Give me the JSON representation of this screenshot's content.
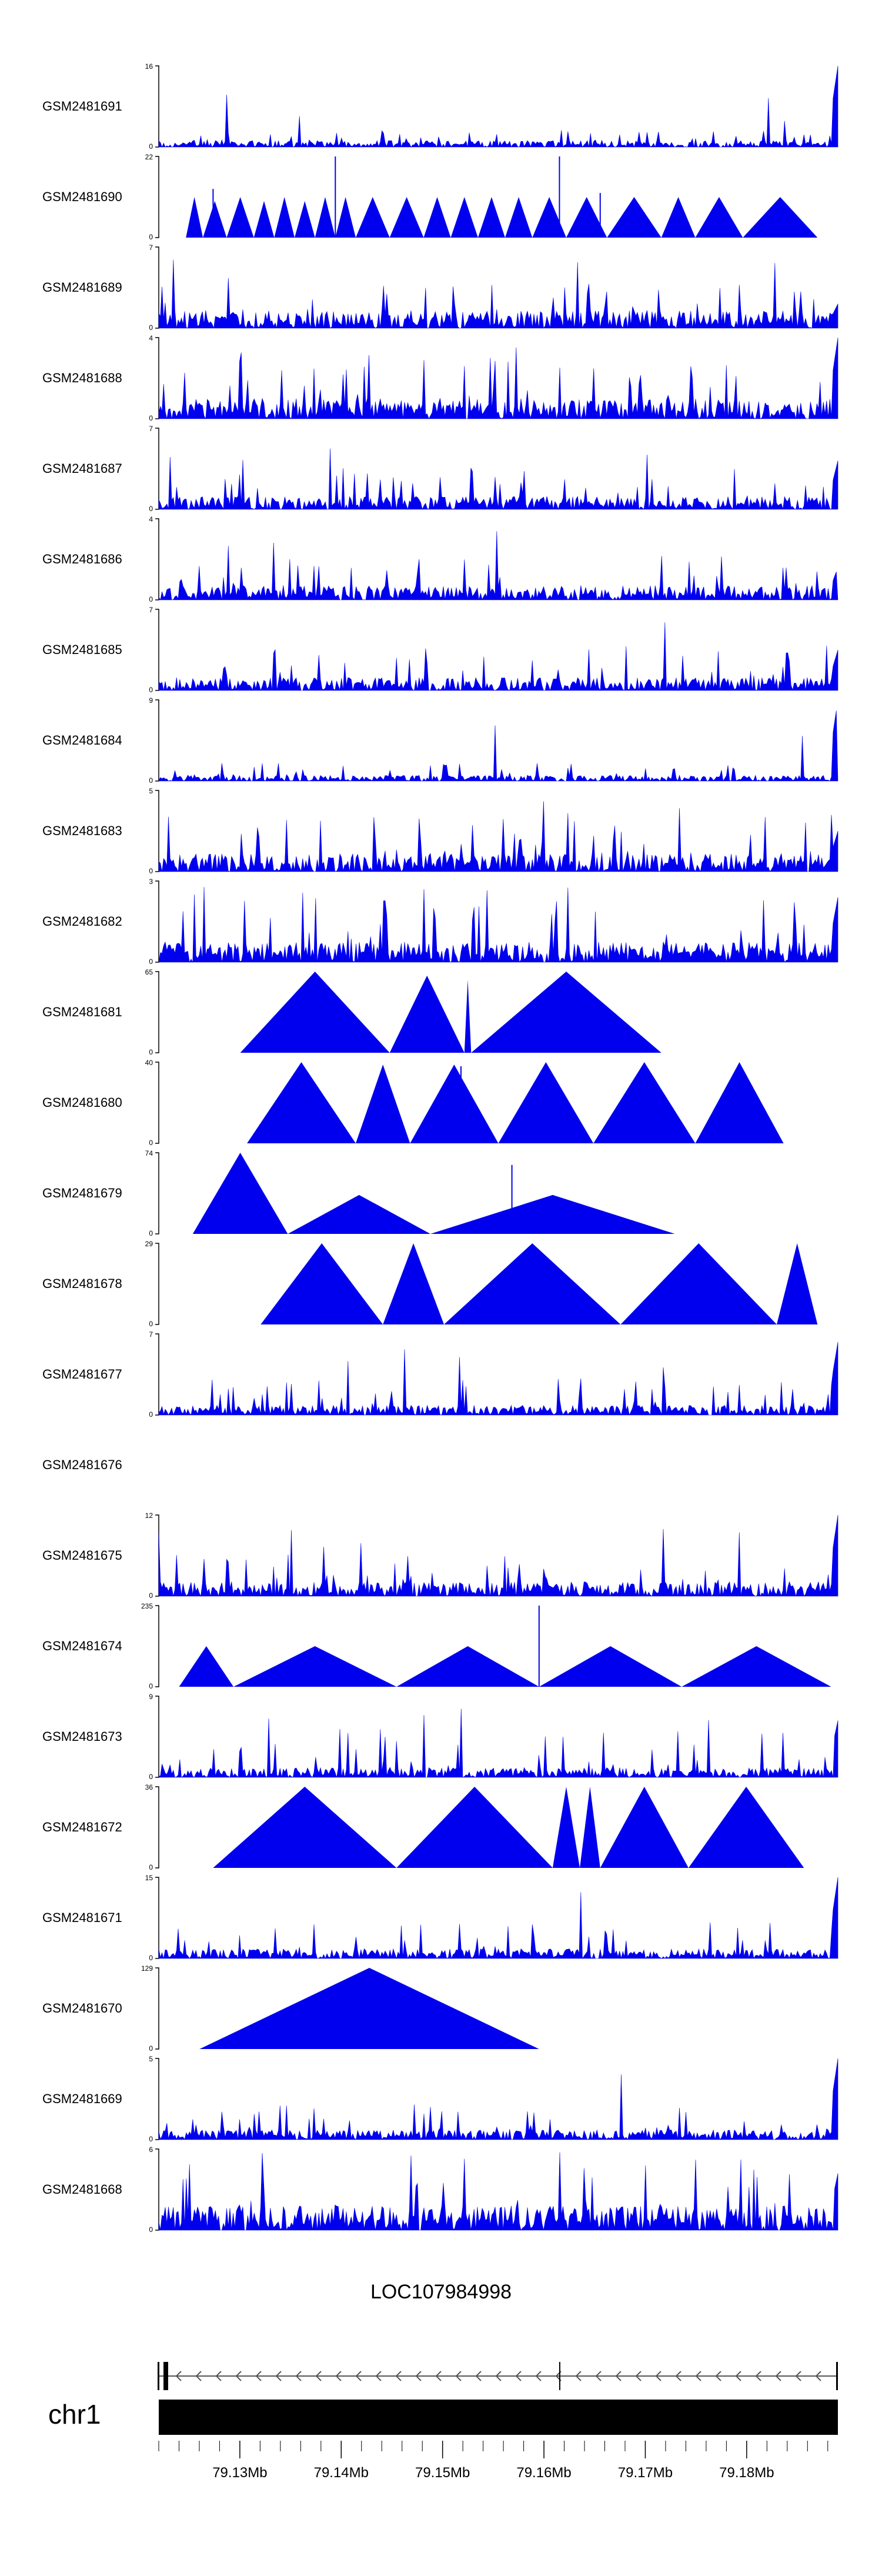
{
  "chart_data": {
    "type": "area",
    "colors": {
      "signal": "#0000ee",
      "axis": "#000000",
      "ideogram": "#000000",
      "gene": "#555555"
    },
    "x_range_mb": [
      79.122,
      79.189
    ],
    "tracks": [
      {
        "name": "GSM2481691",
        "ymax": "16",
        "ymin": "0",
        "pattern": "noise",
        "base": 0.08,
        "spike": 0.22,
        "endSpike": 1.0,
        "seed": 11
      },
      {
        "name": "GSM2481690",
        "ymax": "22",
        "ymin": "0",
        "pattern": "peaks",
        "peaks": [
          [
            0.003,
            0.04,
            0.0
          ],
          [
            0.04,
            0.065,
            0.5
          ],
          [
            0.065,
            0.1,
            0.45
          ],
          [
            0.1,
            0.14,
            0.5
          ],
          [
            0.14,
            0.17,
            0.45
          ],
          [
            0.17,
            0.2,
            0.5
          ],
          [
            0.2,
            0.23,
            0.45
          ],
          [
            0.23,
            0.26,
            0.5
          ],
          [
            0.26,
            0.29,
            0.5
          ],
          [
            0.29,
            0.34,
            0.5
          ],
          [
            0.34,
            0.39,
            0.5
          ],
          [
            0.39,
            0.43,
            0.5
          ],
          [
            0.43,
            0.47,
            0.5
          ],
          [
            0.47,
            0.51,
            0.5
          ],
          [
            0.51,
            0.55,
            0.5
          ],
          [
            0.55,
            0.6,
            0.5
          ],
          [
            0.6,
            0.66,
            0.5
          ],
          [
            0.66,
            0.74,
            0.5
          ],
          [
            0.74,
            0.79,
            0.5
          ],
          [
            0.79,
            0.86,
            0.5
          ],
          [
            0.86,
            0.97,
            0.5
          ]
        ],
        "spikes": [
          [
            0.26,
            1.0
          ],
          [
            0.59,
            1.0
          ],
          [
            0.08,
            0.6
          ],
          [
            0.65,
            0.55
          ]
        ],
        "seed": 12
      },
      {
        "name": "GSM2481689",
        "ymax": "7",
        "ymin": "0",
        "pattern": "noise",
        "base": 0.22,
        "spike": 0.55,
        "endSpike": 0.3,
        "seed": 13
      },
      {
        "name": "GSM2481688",
        "ymax": "4",
        "ymin": "0",
        "pattern": "noise",
        "base": 0.25,
        "spike": 0.75,
        "endSpike": 1.0,
        "seed": 14
      },
      {
        "name": "GSM2481687",
        "ymax": "7",
        "ymin": "0",
        "pattern": "noise",
        "base": 0.16,
        "spike": 0.55,
        "endSpike": 0.6,
        "seed": 15
      },
      {
        "name": "GSM2481686",
        "ymax": "4",
        "ymin": "0",
        "pattern": "noise",
        "base": 0.18,
        "spike": 0.55,
        "endSpike": 0.4,
        "seed": 16
      },
      {
        "name": "GSM2481685",
        "ymax": "7",
        "ymin": "0",
        "pattern": "noise",
        "base": 0.16,
        "spike": 0.55,
        "endSpike": 0.5,
        "seed": 17
      },
      {
        "name": "GSM2481684",
        "ymax": "9",
        "ymin": "0",
        "pattern": "noise",
        "base": 0.07,
        "spike": 0.22,
        "endSpike": 1.0,
        "seed": 18
      },
      {
        "name": "GSM2481683",
        "ymax": "5",
        "ymin": "0",
        "pattern": "noise",
        "base": 0.22,
        "spike": 0.7,
        "endSpike": 0.5,
        "seed": 19
      },
      {
        "name": "GSM2481682",
        "ymax": "3",
        "ymin": "0",
        "pattern": "noise",
        "base": 0.25,
        "spike": 0.9,
        "endSpike": 0.8,
        "seed": 20
      },
      {
        "name": "GSM2481681",
        "ymax": "65",
        "ymin": "0",
        "pattern": "peaks",
        "peaks": [
          [
            0.12,
            0.34,
            1.0
          ],
          [
            0.34,
            0.45,
            0.95
          ],
          [
            0.45,
            0.46,
            0.9
          ],
          [
            0.46,
            0.74,
            1.0
          ]
        ],
        "spikes": [],
        "seed": 21
      },
      {
        "name": "GSM2481680",
        "ymax": "40",
        "ymin": "0",
        "pattern": "peaks",
        "peaks": [
          [
            0.13,
            0.29,
            1.0
          ],
          [
            0.29,
            0.37,
            0.97
          ],
          [
            0.37,
            0.5,
            0.97
          ],
          [
            0.5,
            0.64,
            1.0
          ],
          [
            0.64,
            0.79,
            1.0
          ],
          [
            0.79,
            0.92,
            1.0
          ]
        ],
        "spikes": [
          [
            0.445,
            0.95
          ]
        ],
        "seed": 22
      },
      {
        "name": "GSM2481679",
        "ymax": "74",
        "ymin": "0",
        "pattern": "peaks",
        "peaks": [
          [
            0.05,
            0.19,
            1.0
          ],
          [
            0.19,
            0.4,
            0.48
          ],
          [
            0.4,
            0.76,
            0.48
          ]
        ],
        "spikes": [
          [
            0.52,
            0.85
          ]
        ],
        "seed": 23
      },
      {
        "name": "GSM2481678",
        "ymax": "29",
        "ymin": "0",
        "pattern": "peaks",
        "peaks": [
          [
            0.15,
            0.33,
            1.0
          ],
          [
            0.33,
            0.42,
            1.0
          ],
          [
            0.42,
            0.68,
            1.0
          ],
          [
            0.68,
            0.91,
            1.0
          ],
          [
            0.91,
            0.97,
            1.0
          ]
        ],
        "spikes": [],
        "seed": 24
      },
      {
        "name": "GSM2481677",
        "ymax": "7",
        "ymin": "0",
        "pattern": "noise",
        "base": 0.12,
        "spike": 0.45,
        "endSpike": 0.9,
        "seed": 25
      },
      {
        "name": "GSM2481676",
        "ymax": "",
        "ymin": "",
        "pattern": "empty",
        "seed": 26
      },
      {
        "name": "GSM2481675",
        "ymax": "12",
        "ymin": "0",
        "pattern": "noise",
        "base": 0.18,
        "spike": 0.5,
        "endSpike": 1.0,
        "seed": 27
      },
      {
        "name": "GSM2481674",
        "ymax": "235",
        "ymin": "0",
        "pattern": "peaks",
        "peaks": [
          [
            0.03,
            0.11,
            0.5
          ],
          [
            0.11,
            0.35,
            0.5
          ],
          [
            0.35,
            0.56,
            0.5
          ],
          [
            0.56,
            0.77,
            0.5
          ],
          [
            0.77,
            0.99,
            0.5
          ]
        ],
        "spikes": [
          [
            0.56,
            1.0
          ]
        ],
        "seed": 28
      },
      {
        "name": "GSM2481673",
        "ymax": "9",
        "ymin": "0",
        "pattern": "noise",
        "base": 0.12,
        "spike": 0.6,
        "endSpike": 0.7,
        "seed": 29
      },
      {
        "name": "GSM2481672",
        "ymax": "36",
        "ymin": "0",
        "pattern": "peaks",
        "peaks": [
          [
            0.0,
            0.08,
            0.0
          ],
          [
            0.08,
            0.35,
            1.0
          ],
          [
            0.35,
            0.58,
            1.0
          ],
          [
            0.58,
            0.62,
            1.0
          ],
          [
            0.62,
            0.65,
            1.0
          ],
          [
            0.65,
            0.78,
            1.0
          ],
          [
            0.78,
            0.95,
            1.0
          ]
        ],
        "spikes": [],
        "seed": 30
      },
      {
        "name": "GSM2481671",
        "ymax": "15",
        "ymin": "0",
        "pattern": "noise",
        "base": 0.12,
        "spike": 0.45,
        "endSpike": 1.0,
        "seed": 31
      },
      {
        "name": "GSM2481670",
        "ymax": "129",
        "ymin": "0",
        "pattern": "peaks",
        "peaks": [
          [
            0.06,
            0.56,
            1.0
          ]
        ],
        "spikes": [],
        "seed": 32
      },
      {
        "name": "GSM2481669",
        "ymax": "5",
        "ymin": "0",
        "pattern": "noise",
        "base": 0.12,
        "spike": 0.45,
        "endSpike": 1.0,
        "seed": 33
      },
      {
        "name": "GSM2481668",
        "ymax": "6",
        "ymin": "0",
        "pattern": "noise",
        "base": 0.3,
        "spike": 0.9,
        "endSpike": 0.7,
        "seed": 34
      }
    ],
    "gene": {
      "name": "LOC107984998",
      "strand": "-"
    },
    "chromosome": "chr1",
    "ticks": [
      79.13,
      79.14,
      79.15,
      79.16,
      79.17,
      79.18
    ],
    "tick_labels": [
      "79.13Mb",
      "79.14Mb",
      "79.15Mb",
      "79.16Mb",
      "79.17Mb",
      "79.18Mb"
    ]
  }
}
